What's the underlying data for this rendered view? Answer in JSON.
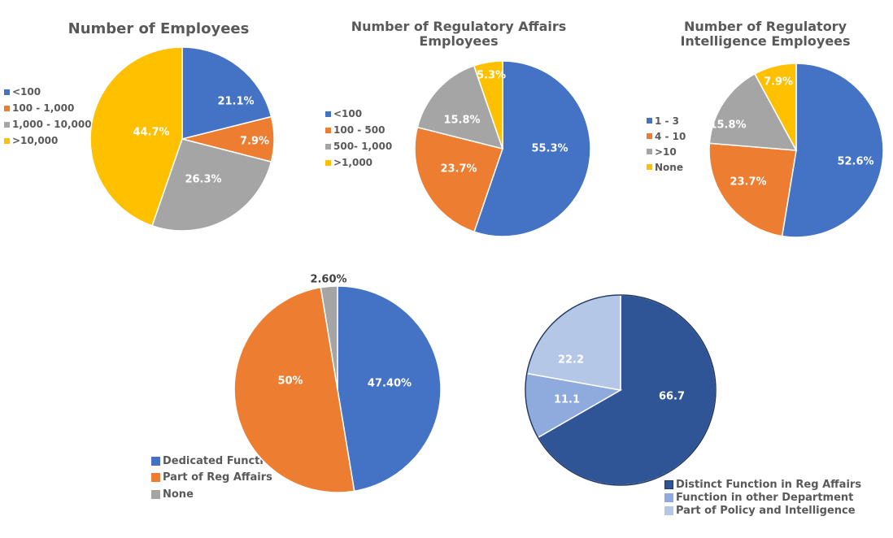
{
  "chart_data": [
    {
      "type": "pie",
      "title": "Number of Employees",
      "legend_position": "left",
      "categories": [
        "<100",
        "100 - 1,000",
        "1,000 - 10,000",
        ">10,000"
      ],
      "values": [
        21.1,
        7.9,
        26.3,
        44.7
      ],
      "labels": [
        "21.1%",
        "7.9%",
        "26.3%",
        "44.7%"
      ],
      "colors": [
        "#4472C4",
        "#ED7D31",
        "#A5A5A5",
        "#FFC000"
      ]
    },
    {
      "type": "pie",
      "title": "Number of Regulatory Affairs Employees",
      "legend_position": "left",
      "categories": [
        "<100",
        "100 - 500",
        "500- 1,000",
        ">1,000"
      ],
      "values": [
        55.3,
        23.7,
        15.8,
        5.3
      ],
      "labels": [
        "55.3%",
        "23.7%",
        "15.8%",
        "5.3%"
      ],
      "colors": [
        "#4472C4",
        "#ED7D31",
        "#A5A5A5",
        "#FFC000"
      ]
    },
    {
      "type": "pie",
      "title": "Number of Regulatory Intelligence Employees",
      "legend_position": "left",
      "categories": [
        "1 - 3",
        "4 - 10",
        ">10",
        "None"
      ],
      "values": [
        52.6,
        23.7,
        15.8,
        7.9
      ],
      "labels": [
        "52.6%",
        "23.7%",
        "15.8%",
        "7.9%"
      ],
      "colors": [
        "#4472C4",
        "#ED7D31",
        "#A5A5A5",
        "#FFC000"
      ]
    },
    {
      "type": "pie",
      "title": "",
      "legend_position": "bottom-left",
      "categories": [
        "Dedicated Function",
        "Part of Reg Affairs",
        "None"
      ],
      "values": [
        47.4,
        50,
        2.6
      ],
      "labels": [
        "47.40%",
        "50%",
        "2.60%"
      ],
      "colors": [
        "#4472C4",
        "#ED7D31",
        "#A5A5A5"
      ]
    },
    {
      "type": "pie",
      "title": "",
      "legend_position": "bottom-right",
      "categories": [
        "Distinct Function in Reg Affairs",
        "Function in other Department",
        "Part of Policy and Intelligence"
      ],
      "values": [
        66.7,
        11.1,
        22.2
      ],
      "labels": [
        "66.7",
        "11.1",
        "22.2"
      ],
      "colors": [
        "#2F5597",
        "#8FAADC",
        "#B4C7E7"
      ]
    }
  ]
}
